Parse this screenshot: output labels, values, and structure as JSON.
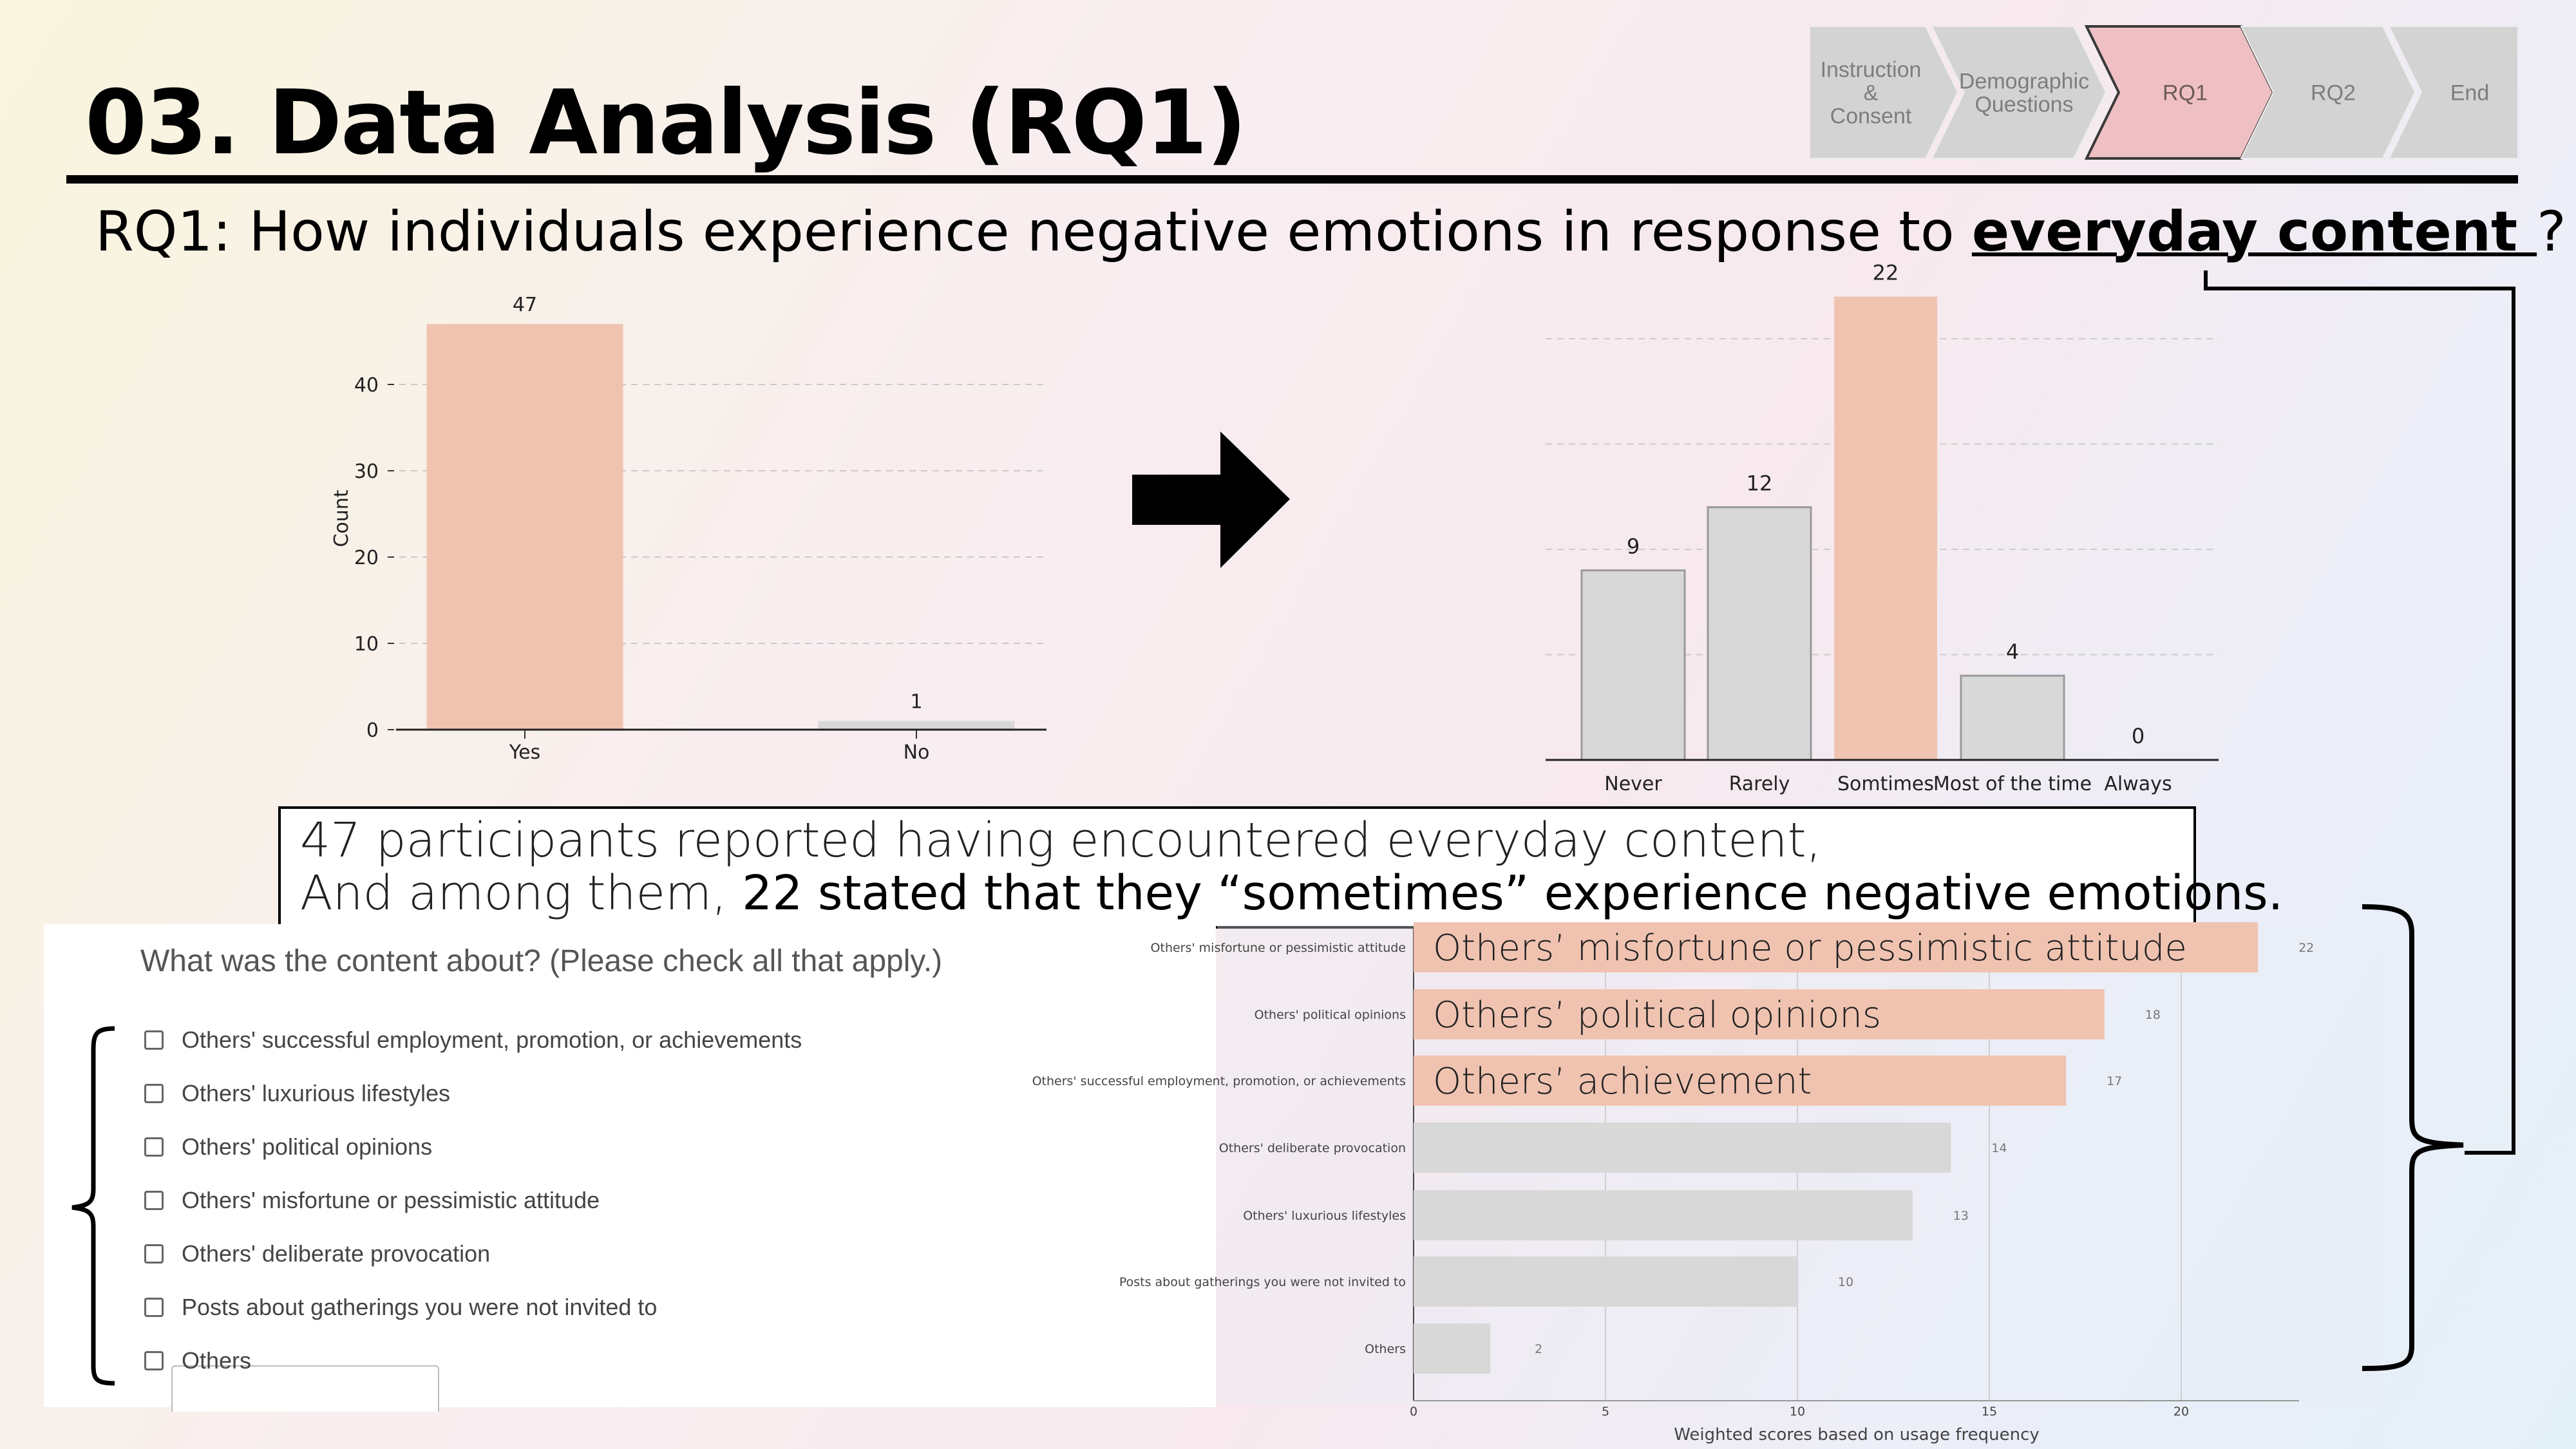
{
  "slide": {
    "title": "03. Data Analysis (RQ1)",
    "question_prefix": "RQ1: How individuals experience negative emotions in response to ",
    "question_emphasis": "everyday content ",
    "question_suffix": "?"
  },
  "breadcrumb": {
    "steps": [
      {
        "label_lines": [
          "Instruction",
          "&",
          "Consent"
        ],
        "active": false
      },
      {
        "label_lines": [
          "Demographic",
          "Questions"
        ],
        "active": false
      },
      {
        "label_lines": [
          "RQ1"
        ],
        "active": true
      },
      {
        "label_lines": [
          "RQ2"
        ],
        "active": false
      },
      {
        "label_lines": [
          "End"
        ],
        "active": false
      }
    ],
    "colors": {
      "inactive": "#d3d3d3",
      "active": "#efc0c3",
      "active_border": "#3a3a3a"
    }
  },
  "summary": {
    "line1": "47 participants reported having encountered everyday content,",
    "line2_plain": "And among them, ",
    "line2_emphasis": "22 stated that they “sometimes” experience negative emotions."
  },
  "form": {
    "question": "What was the content about? (Please check all that apply.)",
    "options": [
      "Others' successful employment, promotion, or achievements",
      "Others' luxurious lifestyles",
      "Others' political opinions",
      "Others' misfortune or pessimistic attitude",
      "Others' deliberate provocation",
      "Posts about gatherings you were not invited to",
      "Others"
    ]
  },
  "colors": {
    "highlight": "#f0c3b1",
    "bar_gray": "#d8d8d8",
    "bar_edge": "#9a9a9a"
  },
  "chart_data": [
    {
      "type": "bar",
      "categories": [
        "Yes",
        "No"
      ],
      "values": [
        47,
        1
      ],
      "data_labels": [
        "47",
        "1"
      ],
      "ylabel": "Count",
      "yticks": [
        0,
        10,
        20,
        30,
        40
      ],
      "ylim": [
        0,
        50
      ],
      "highlight": "Yes",
      "grid": "horizontal dashed"
    },
    {
      "type": "bar",
      "categories": [
        "Never",
        "Rarely",
        "Somtimes",
        "Most of the time",
        "Always"
      ],
      "values": [
        9,
        12,
        22,
        4,
        0
      ],
      "data_labels": [
        "9",
        "12",
        "22",
        "4",
        "0"
      ],
      "ylim": [
        0,
        22
      ],
      "highlight": "Somtimes",
      "grid": "horizontal dashed"
    },
    {
      "type": "bar",
      "orientation": "horizontal",
      "categories": [
        "Others' misfortune or pessimistic attitude",
        "Others' political opinions",
        "Others' successful employment, promotion, or achievements",
        "Others' deliberate provocation",
        "Others' luxurious lifestyles",
        "Posts about gatherings you were not invited to",
        "Others"
      ],
      "values": [
        22,
        18,
        17,
        14,
        13,
        10,
        2
      ],
      "data_labels": [
        "22",
        "18",
        "17",
        "14",
        "13",
        "10",
        "2"
      ],
      "highlighted_count": 3,
      "overlay_labels": [
        "Others’ misfortune or pessimistic attitude",
        "Others’ political opinions",
        "Others’ achievement"
      ],
      "xlabel": "Weighted scores based on usage frequency",
      "xticks": [
        0,
        5,
        10,
        15,
        20
      ],
      "xlim": [
        0,
        23
      ],
      "grid": "vertical"
    }
  ]
}
